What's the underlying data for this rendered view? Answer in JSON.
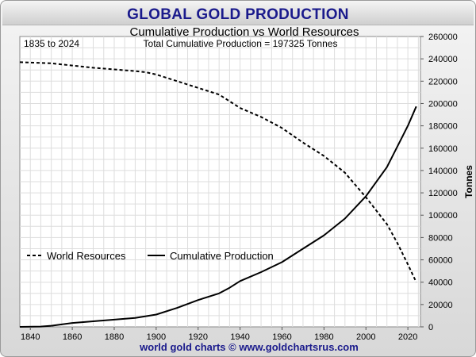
{
  "banner": {
    "title": "GLOBAL GOLD PRODUCTION"
  },
  "chart_data": {
    "type": "line",
    "title": "Cumulative Production vs World Resources",
    "annotation_left": "1835 to 2024",
    "annotation_center": "Total Cumulative Production = 197325  Tonnes",
    "xlabel": "",
    "ylabel": "Tonnes",
    "xlim": [
      1835,
      2026
    ],
    "ylim": [
      0,
      260000
    ],
    "x_ticks": [
      1840,
      1860,
      1880,
      1900,
      1920,
      1940,
      1960,
      1980,
      2000,
      2020
    ],
    "y_ticks": [
      0,
      20000,
      40000,
      60000,
      80000,
      100000,
      120000,
      140000,
      160000,
      180000,
      200000,
      220000,
      240000,
      260000
    ],
    "grid": true,
    "legend_position": "lower-left",
    "series": [
      {
        "name": "World Resources",
        "style": "dashed",
        "color": "#000000",
        "points": [
          [
            1835,
            237000
          ],
          [
            1850,
            236000
          ],
          [
            1860,
            234000
          ],
          [
            1870,
            232000
          ],
          [
            1880,
            230500
          ],
          [
            1890,
            229000
          ],
          [
            1895,
            228000
          ],
          [
            1900,
            226000
          ],
          [
            1910,
            220000
          ],
          [
            1920,
            214000
          ],
          [
            1930,
            208000
          ],
          [
            1940,
            196000
          ],
          [
            1950,
            188000
          ],
          [
            1960,
            178000
          ],
          [
            1970,
            165000
          ],
          [
            1980,
            153000
          ],
          [
            1990,
            138000
          ],
          [
            2000,
            116000
          ],
          [
            2010,
            92000
          ],
          [
            2015,
            75000
          ],
          [
            2020,
            56000
          ],
          [
            2024,
            40000
          ]
        ]
      },
      {
        "name": "Cumulative Production",
        "style": "solid",
        "color": "#000000",
        "points": [
          [
            1835,
            0
          ],
          [
            1845,
            300
          ],
          [
            1850,
            1000
          ],
          [
            1860,
            3500
          ],
          [
            1870,
            5000
          ],
          [
            1880,
            6500
          ],
          [
            1890,
            8000
          ],
          [
            1900,
            11000
          ],
          [
            1910,
            17000
          ],
          [
            1920,
            24000
          ],
          [
            1930,
            30000
          ],
          [
            1935,
            35000
          ],
          [
            1940,
            41000
          ],
          [
            1950,
            49000
          ],
          [
            1960,
            58000
          ],
          [
            1970,
            70000
          ],
          [
            1980,
            82000
          ],
          [
            1990,
            97000
          ],
          [
            2000,
            117000
          ],
          [
            2010,
            143000
          ],
          [
            2020,
            180000
          ],
          [
            2024,
            197325
          ]
        ]
      }
    ]
  },
  "footer": {
    "credit": "world gold charts © www.goldchartsrus.com"
  }
}
